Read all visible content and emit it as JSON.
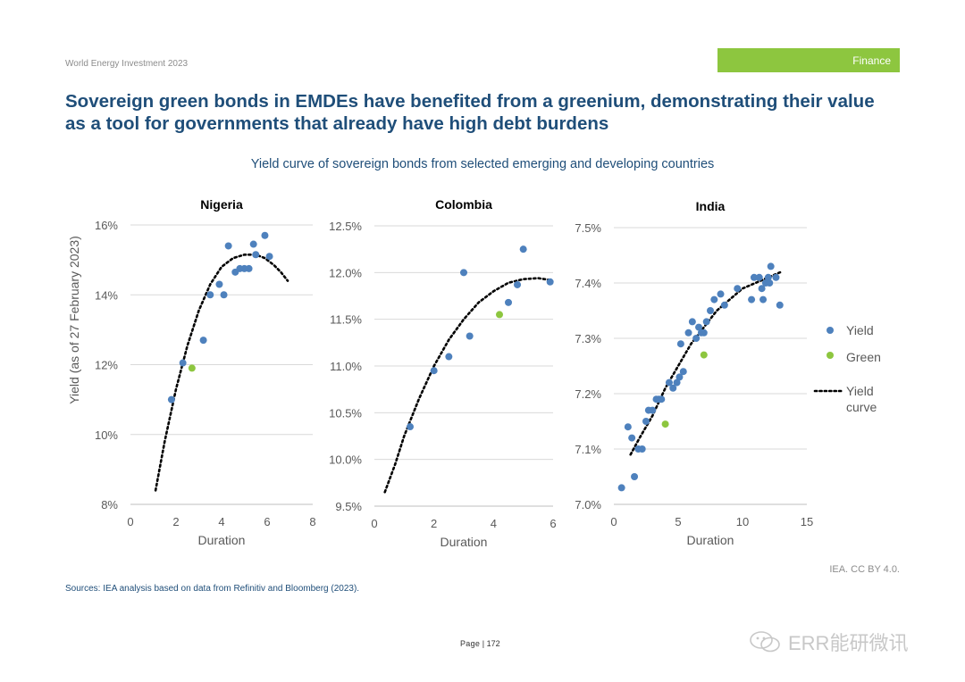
{
  "header": {
    "report": "World Energy Investment 2023",
    "section": "Finance"
  },
  "headline": "Sovereign green bonds in EMDEs have benefited from a greenium, demonstrating their value as a tool for governments that already have high debt burdens",
  "subtitle": "Yield curve of sovereign bonds from selected emerging and developing countries",
  "credit": "IEA. CC BY 4.0.",
  "sources": "Sources: IEA analysis based on data from Refinitiv and Bloomberg (2023).",
  "footer": {
    "page_label": "Page",
    "page_number": "| 172"
  },
  "watermark": "ERR能研微讯",
  "colors": {
    "yield": "#4e81bd",
    "green": "#8dc63f",
    "curve": "#000000",
    "title": "#1f4e79",
    "grid": "#d9d9d9"
  },
  "chart_data": [
    {
      "type": "scatter",
      "title": "Nigeria",
      "xlabel": "Duration",
      "ylabel": "Yield (as of 27 February 2023)",
      "xlim": [
        0,
        8
      ],
      "ylim": [
        8,
        16
      ],
      "x_ticks": [
        0,
        2,
        4,
        6,
        8
      ],
      "y_ticks": [
        8,
        10,
        12,
        14,
        16
      ],
      "y_tick_labels": [
        "8%",
        "10%",
        "12%",
        "14%",
        "16%"
      ],
      "grid": "horizontal",
      "series": [
        {
          "name": "Yield",
          "points": [
            [
              1.8,
              11.0
            ],
            [
              2.3,
              12.05
            ],
            [
              3.2,
              12.7
            ],
            [
              3.5,
              14.0
            ],
            [
              3.9,
              14.3
            ],
            [
              4.1,
              14.0
            ],
            [
              4.3,
              15.4
            ],
            [
              4.6,
              14.65
            ],
            [
              4.8,
              14.75
            ],
            [
              5.0,
              14.75
            ],
            [
              5.2,
              14.75
            ],
            [
              5.4,
              15.45
            ],
            [
              5.5,
              15.15
            ],
            [
              5.9,
              15.7
            ],
            [
              6.1,
              15.1
            ]
          ]
        },
        {
          "name": "Green",
          "points": [
            [
              2.7,
              11.9
            ]
          ]
        },
        {
          "name": "Yield curve",
          "x": [
            1.1,
            1.5,
            2.0,
            2.5,
            3.0,
            3.5,
            4.0,
            4.5,
            5.0,
            5.5,
            5.9,
            6.3,
            6.6,
            6.9
          ],
          "y": [
            8.4,
            9.8,
            11.3,
            12.55,
            13.55,
            14.3,
            14.8,
            15.05,
            15.15,
            15.15,
            15.05,
            14.85,
            14.65,
            14.4
          ]
        }
      ]
    },
    {
      "type": "scatter",
      "title": "Colombia",
      "xlabel": "Duration",
      "ylabel": "",
      "xlim": [
        0,
        6
      ],
      "ylim": [
        9.5,
        12.5
      ],
      "x_ticks": [
        0,
        2,
        4,
        6
      ],
      "y_ticks": [
        9.5,
        10.0,
        10.5,
        11.0,
        11.5,
        12.0,
        12.5
      ],
      "y_tick_labels": [
        "9.5%",
        "10.0%",
        "10.5%",
        "11.0%",
        "11.5%",
        "12.0%",
        "12.5%"
      ],
      "grid": "horizontal",
      "series": [
        {
          "name": "Yield",
          "points": [
            [
              1.2,
              10.35
            ],
            [
              2.0,
              10.95
            ],
            [
              2.5,
              11.1
            ],
            [
              3.0,
              12.0
            ],
            [
              3.2,
              11.32
            ],
            [
              4.5,
              11.68
            ],
            [
              4.8,
              11.87
            ],
            [
              5.0,
              12.25
            ],
            [
              5.9,
              11.9
            ]
          ]
        },
        {
          "name": "Green",
          "points": [
            [
              4.2,
              11.55
            ]
          ]
        },
        {
          "name": "Yield curve",
          "x": [
            0.35,
            0.7,
            1.0,
            1.5,
            2.0,
            2.5,
            3.0,
            3.5,
            4.0,
            4.5,
            5.0,
            5.5,
            5.9
          ],
          "y": [
            9.65,
            9.95,
            10.25,
            10.65,
            11.0,
            11.28,
            11.5,
            11.68,
            11.8,
            11.89,
            11.93,
            11.94,
            11.92
          ]
        }
      ]
    },
    {
      "type": "scatter",
      "title": "India",
      "xlabel": "Duration",
      "ylabel": "",
      "xlim": [
        0,
        15
      ],
      "ylim": [
        7.0,
        7.5
      ],
      "x_ticks": [
        0,
        5,
        10,
        15
      ],
      "y_ticks": [
        7.0,
        7.1,
        7.2,
        7.3,
        7.4,
        7.5
      ],
      "y_tick_labels": [
        "7.0%",
        "7.1%",
        "7.2%",
        "7.3%",
        "7.4%",
        "7.5%"
      ],
      "grid": "horizontal",
      "series": [
        {
          "name": "Yield",
          "points": [
            [
              0.6,
              7.03
            ],
            [
              1.1,
              7.14
            ],
            [
              1.4,
              7.12
            ],
            [
              1.6,
              7.05
            ],
            [
              1.9,
              7.1
            ],
            [
              2.2,
              7.1
            ],
            [
              2.5,
              7.15
            ],
            [
              2.7,
              7.17
            ],
            [
              3.0,
              7.17
            ],
            [
              3.3,
              7.19
            ],
            [
              3.5,
              7.19
            ],
            [
              3.7,
              7.19
            ],
            [
              4.3,
              7.22
            ],
            [
              4.6,
              7.21
            ],
            [
              4.9,
              7.22
            ],
            [
              5.1,
              7.23
            ],
            [
              5.4,
              7.24
            ],
            [
              5.2,
              7.29
            ],
            [
              5.8,
              7.31
            ],
            [
              6.1,
              7.33
            ],
            [
              6.4,
              7.3
            ],
            [
              6.6,
              7.32
            ],
            [
              6.8,
              7.31
            ],
            [
              7.0,
              7.31
            ],
            [
              7.2,
              7.33
            ],
            [
              7.5,
              7.35
            ],
            [
              7.8,
              7.37
            ],
            [
              8.3,
              7.38
            ],
            [
              8.6,
              7.36
            ],
            [
              9.6,
              7.39
            ],
            [
              10.7,
              7.37
            ],
            [
              10.9,
              7.41
            ],
            [
              11.3,
              7.41
            ],
            [
              11.5,
              7.39
            ],
            [
              11.8,
              7.4
            ],
            [
              12.0,
              7.41
            ],
            [
              12.2,
              7.43
            ],
            [
              12.6,
              7.41
            ],
            [
              12.9,
              7.36
            ],
            [
              11.6,
              7.37
            ],
            [
              12.1,
              7.4
            ]
          ]
        },
        {
          "name": "Green",
          "points": [
            [
              4.0,
              7.145
            ],
            [
              7.0,
              7.27
            ]
          ]
        },
        {
          "name": "Yield curve",
          "x": [
            1.3,
            2.0,
            3.0,
            4.0,
            5.0,
            6.0,
            7.0,
            8.0,
            9.0,
            10.0,
            11.0,
            12.0,
            13.0
          ],
          "y": [
            7.09,
            7.12,
            7.16,
            7.21,
            7.25,
            7.29,
            7.32,
            7.35,
            7.37,
            7.39,
            7.4,
            7.41,
            7.42
          ]
        }
      ]
    }
  ],
  "legend": [
    {
      "label": "Yield",
      "kind": "dot",
      "color": "#4e81bd"
    },
    {
      "label": "Green",
      "kind": "dot",
      "color": "#8dc63f"
    },
    {
      "label": "Yield\ncurve",
      "kind": "dotted-line",
      "color": "#000000"
    }
  ]
}
